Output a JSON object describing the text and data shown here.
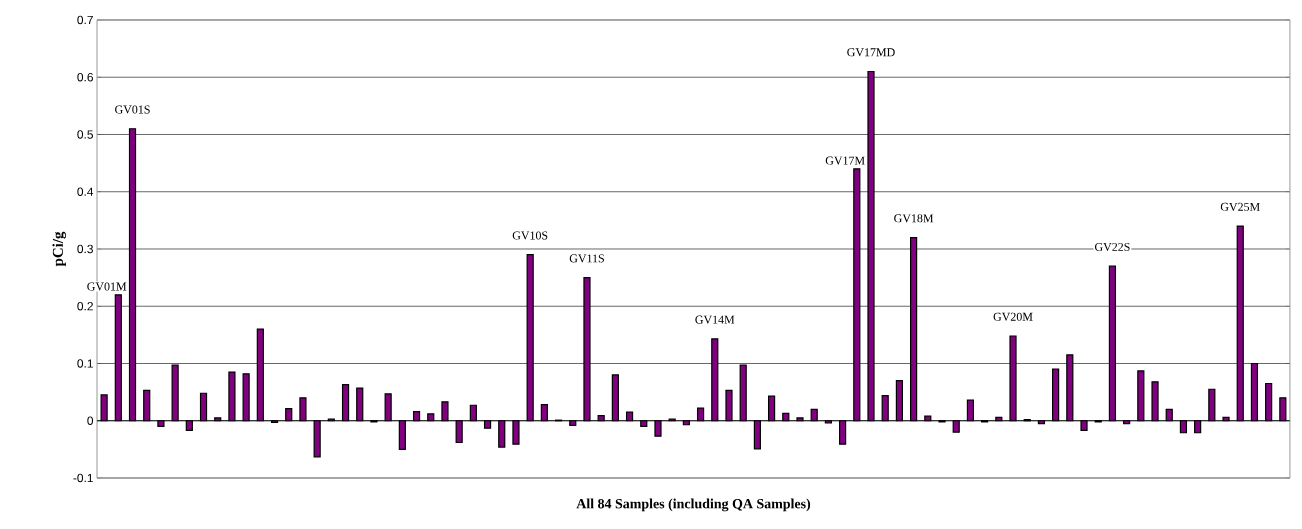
{
  "chart_data": {
    "type": "bar",
    "xlabel": "All 84 Samples (including QA Samples)",
    "ylabel": "pCi/g",
    "categories": [
      null,
      null,
      null,
      null,
      null,
      null,
      null,
      null,
      null,
      null,
      null,
      null,
      null,
      null,
      null,
      null,
      null,
      null,
      null,
      null,
      null,
      null,
      null,
      null,
      null,
      null,
      null,
      null,
      null,
      null,
      null,
      null,
      null,
      null,
      null,
      null,
      null,
      null,
      null,
      null,
      null,
      null,
      null,
      null,
      null,
      null,
      null,
      null,
      null,
      null,
      null,
      null,
      null,
      null,
      null,
      null,
      null,
      null,
      null,
      null,
      null,
      null,
      null,
      null,
      null,
      null,
      null,
      null,
      null,
      null,
      null,
      null,
      null,
      null,
      null,
      null,
      null,
      null,
      null,
      null,
      null,
      null,
      null,
      null
    ],
    "values": [
      0.045,
      0.22,
      0.51,
      0.053,
      -0.01,
      0.097,
      -0.017,
      0.048,
      0.005,
      0.085,
      0.082,
      0.16,
      -0.003,
      0.021,
      0.04,
      -0.063,
      0.003,
      0.063,
      0.057,
      -0.002,
      0.047,
      -0.05,
      0.016,
      0.012,
      0.033,
      -0.038,
      0.027,
      -0.013,
      -0.046,
      -0.041,
      0.29,
      0.028,
      0.001,
      -0.008,
      0.25,
      0.009,
      0.08,
      0.015,
      -0.01,
      -0.027,
      0.003,
      -0.007,
      0.022,
      0.143,
      0.053,
      0.097,
      -0.049,
      0.043,
      0.013,
      0.005,
      0.02,
      -0.004,
      -0.041,
      0.44,
      0.61,
      0.044,
      0.07,
      0.32,
      0.008,
      -0.002,
      -0.02,
      0.036,
      -0.002,
      0.006,
      0.148,
      0.002,
      -0.005,
      0.09,
      0.115,
      -0.017,
      -0.002,
      0.27,
      -0.005,
      0.087,
      0.068,
      0.02,
      -0.021,
      -0.021,
      0.055,
      0.006,
      0.34,
      0.1,
      0.065,
      0.04
    ],
    "color": "#800080",
    "ylim": [
      -0.1,
      0.7
    ],
    "yticks": [
      -0.1,
      0,
      0.1,
      0.2,
      0.3,
      0.4,
      0.5,
      0.6,
      0.7
    ],
    "grid": "y",
    "value_labels": [
      null,
      "GV01M",
      "GV01S",
      null,
      null,
      null,
      null,
      null,
      null,
      null,
      null,
      null,
      null,
      null,
      null,
      null,
      null,
      null,
      null,
      null,
      null,
      null,
      null,
      null,
      null,
      null,
      null,
      null,
      null,
      null,
      "GV10S",
      null,
      null,
      null,
      "GV11S",
      null,
      null,
      null,
      null,
      null,
      null,
      null,
      null,
      "GV14M",
      null,
      null,
      null,
      null,
      null,
      null,
      null,
      null,
      null,
      "GV17M",
      "GV17MD",
      null,
      null,
      "GV18M",
      null,
      null,
      null,
      null,
      null,
      null,
      "GV20M",
      null,
      null,
      null,
      null,
      null,
      null,
      "GV22S",
      null,
      null,
      null,
      null,
      null,
      null,
      null,
      null,
      "GV25M",
      null,
      null,
      null
    ]
  }
}
